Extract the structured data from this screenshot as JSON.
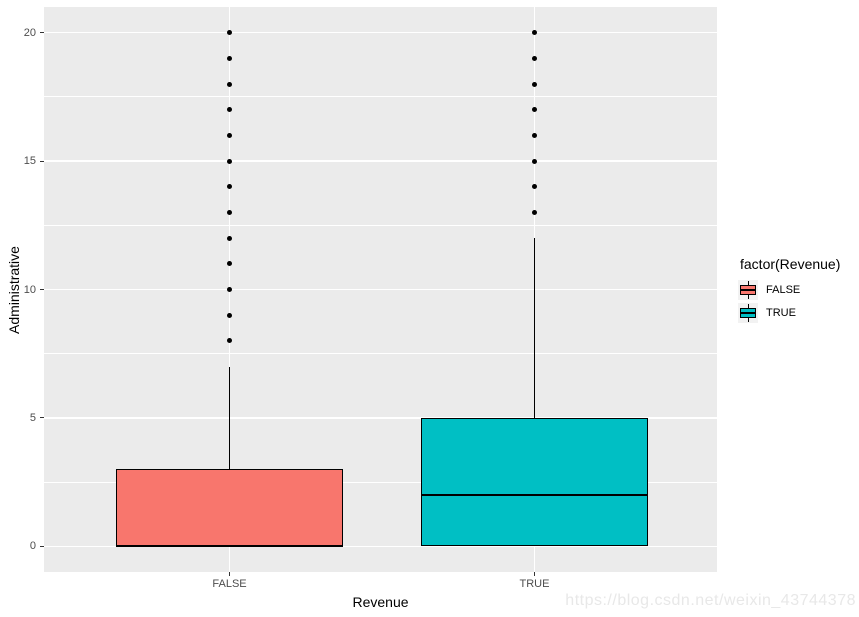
{
  "watermark": "https://blog.csdn.net/weixin_43744378",
  "chart_data": {
    "type": "boxplot",
    "title": "",
    "xlabel": "Revenue",
    "ylabel": "Administrative",
    "ylim": [
      -1,
      21
    ],
    "yticks": [
      0,
      5,
      10,
      15,
      20
    ],
    "yticks_minor": [
      2.5,
      7.5,
      12.5,
      17.5
    ],
    "categories": [
      "FALSE",
      "TRUE"
    ],
    "panel_bg": "#EBEBEB",
    "grid_color": "#FFFFFF",
    "grid": true,
    "series": [
      {
        "name": "FALSE",
        "color": "#F8766D",
        "x_frac": 0.2757,
        "box_width_frac": 0.338,
        "q1": 0,
        "median": 0,
        "q3": 3,
        "whisker_low": 0,
        "whisker_high": 7,
        "outliers": [
          8,
          9,
          10,
          11,
          12,
          13,
          14,
          15,
          16,
          17,
          18,
          19,
          20
        ]
      },
      {
        "name": "TRUE",
        "color": "#00BFC4",
        "x_frac": 0.7288,
        "box_width_frac": 0.338,
        "q1": 0,
        "median": 2,
        "q3": 5,
        "whisker_low": 0,
        "whisker_high": 12,
        "outliers": [
          13,
          14,
          15,
          16,
          17,
          18,
          19,
          20
        ]
      }
    ],
    "legend": {
      "title": "factor(Revenue)",
      "position": "right",
      "entries": [
        {
          "label": "FALSE",
          "color": "#F8766D"
        },
        {
          "label": "TRUE",
          "color": "#00BFC4"
        }
      ]
    }
  }
}
